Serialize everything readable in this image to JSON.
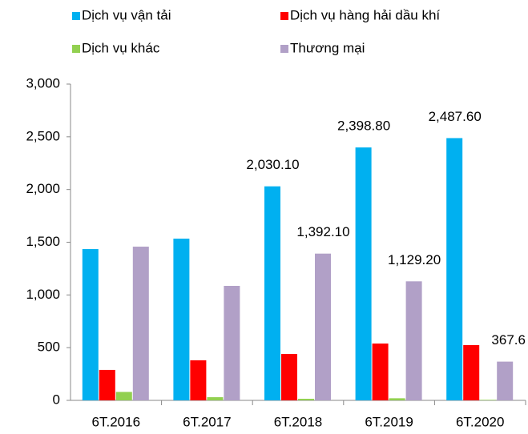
{
  "chart_data": {
    "type": "bar",
    "categories": [
      "6T.2016",
      "6T.2017",
      "6T.2018",
      "6T.2019",
      "6T.2020"
    ],
    "series": [
      {
        "name": "Dịch vụ vận tải",
        "color": "#00b0f0",
        "values": [
          1435,
          1534,
          2030.1,
          2398.8,
          2487.6
        ],
        "value_labels": [
          null,
          null,
          "2,030.10",
          "2,398.80",
          "2,487.60"
        ]
      },
      {
        "name": "Dịch vụ hàng hải dầu khí",
        "color": "#ff0000",
        "values": [
          289,
          380,
          440,
          539,
          524
        ]
      },
      {
        "name": "Dịch vụ khác",
        "color": "#92d050",
        "values": [
          80,
          30,
          15,
          20,
          5
        ]
      },
      {
        "name": "Thương mại",
        "color": "#b1a0c7",
        "values": [
          1458,
          1086,
          1392.1,
          1129.2,
          367.6
        ],
        "value_labels": [
          null,
          null,
          "1,392.10",
          "1,129.20",
          "367.6"
        ]
      }
    ],
    "ylim": [
      0,
      3000
    ],
    "yticks": [
      0,
      {
        "value": 500,
        "label": "500"
      },
      {
        "value": 1000,
        "label": "1,000"
      },
      {
        "value": 1500,
        "label": "1,500"
      },
      {
        "value": 2000,
        "label": "2,000"
      },
      {
        "value": 2500,
        "label": "2,500"
      },
      {
        "value": 3000,
        "label": "3,000"
      }
    ],
    "grid": false,
    "legend": "top"
  }
}
